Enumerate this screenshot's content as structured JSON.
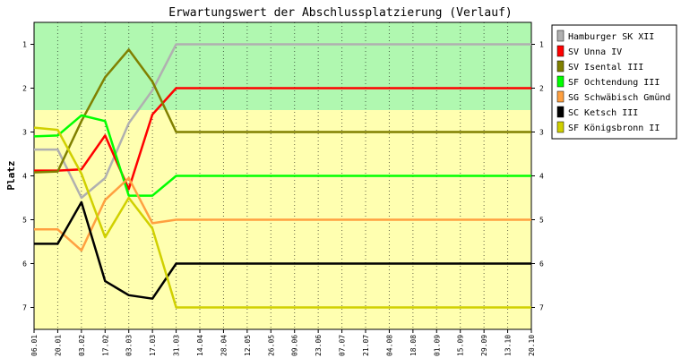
{
  "chart_data": {
    "type": "line",
    "title": "Erwartungswert der Abschlussplatzierung (Verlauf)",
    "xlabel": "",
    "ylabel": "Platz",
    "ylim": [
      0.5,
      7.5
    ],
    "y_reversed": true,
    "yticks": [
      1,
      2,
      3,
      4,
      5,
      6,
      7
    ],
    "x": [
      "06.01",
      "20.01",
      "03.02",
      "17.02",
      "03.03",
      "17.03",
      "31.03",
      "14.04",
      "28.04",
      "12.05",
      "26.05",
      "09.06",
      "23.06",
      "07.07",
      "21.07",
      "04.08",
      "18.08",
      "01.09",
      "15.09",
      "29.09",
      "13.10",
      "20.10"
    ],
    "zones": [
      {
        "from": 0.5,
        "to": 2.5,
        "color": "#b0f8b0"
      },
      {
        "from": 2.5,
        "to": 7.5,
        "color": "#ffffb0"
      }
    ],
    "grid": true,
    "legend_position": "right",
    "series": [
      {
        "name": "Hamburger SK XII",
        "color": "#b0b0b0",
        "values": [
          3.4,
          3.4,
          4.5,
          4.05,
          2.8,
          2.05,
          1,
          1,
          1,
          1,
          1,
          1,
          1,
          1,
          1,
          1,
          1,
          1,
          1,
          1,
          1,
          1
        ]
      },
      {
        "name": "SV Unna IV",
        "color": "#ff0000",
        "values": [
          3.88,
          3.88,
          3.85,
          3.08,
          4.3,
          2.6,
          2,
          2,
          2,
          2,
          2,
          2,
          2,
          2,
          2,
          2,
          2,
          2,
          2,
          2,
          2,
          2
        ]
      },
      {
        "name": "SV Isental III",
        "color": "#808000",
        "values": [
          3.92,
          3.9,
          2.75,
          1.75,
          1.12,
          1.85,
          3,
          3,
          3,
          3,
          3,
          3,
          3,
          3,
          3,
          3,
          3,
          3,
          3,
          3,
          3,
          3
        ]
      },
      {
        "name": "SF Ochtendung III",
        "color": "#00ff00",
        "values": [
          3.1,
          3.08,
          2.62,
          2.75,
          4.45,
          4.45,
          4,
          4,
          4,
          4,
          4,
          4,
          4,
          4,
          4,
          4,
          4,
          4,
          4,
          4,
          4,
          4
        ]
      },
      {
        "name": "SG Schwäbisch Gmünd",
        "color": "#ffa040",
        "values": [
          5.22,
          5.22,
          5.7,
          4.55,
          4.05,
          5.08,
          5,
          5,
          5,
          5,
          5,
          5,
          5,
          5,
          5,
          5,
          5,
          5,
          5,
          5,
          5,
          5
        ]
      },
      {
        "name": "SC Ketsch III",
        "color": "#000000",
        "values": [
          5.55,
          5.55,
          4.6,
          6.4,
          6.72,
          6.8,
          6,
          6,
          6,
          6,
          6,
          6,
          6,
          6,
          6,
          6,
          6,
          6,
          6,
          6,
          6,
          6
        ]
      },
      {
        "name": "SF Königsbronn II",
        "color": "#d0d000",
        "values": [
          2.9,
          2.95,
          3.95,
          5.4,
          4.5,
          5.2,
          7,
          7,
          7,
          7,
          7,
          7,
          7,
          7,
          7,
          7,
          7,
          7,
          7,
          7,
          7,
          7
        ]
      }
    ]
  }
}
